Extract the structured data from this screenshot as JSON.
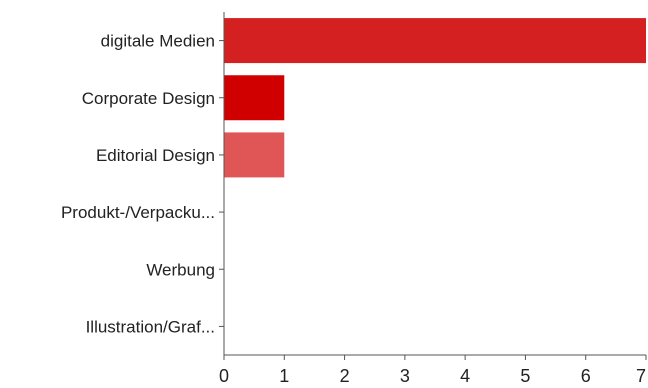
{
  "chart_data": {
    "type": "bar",
    "orientation": "horizontal",
    "categories": [
      "digitale Medien",
      "Corporate Design",
      "Editorial Design",
      "Produkt-/Verpacku...",
      "Werbung",
      "Illustration/Graf..."
    ],
    "values": [
      7,
      1,
      1,
      0,
      0,
      0
    ],
    "bar_colors": [
      "#d42020",
      "#d10000",
      "#e05555",
      "#d42020",
      "#d42020",
      "#d42020"
    ],
    "x_ticks": [
      "0",
      "1",
      "2",
      "3",
      "4",
      "5",
      "6",
      "7"
    ],
    "xlim": [
      0,
      7
    ],
    "grid": false,
    "legend": "none"
  }
}
